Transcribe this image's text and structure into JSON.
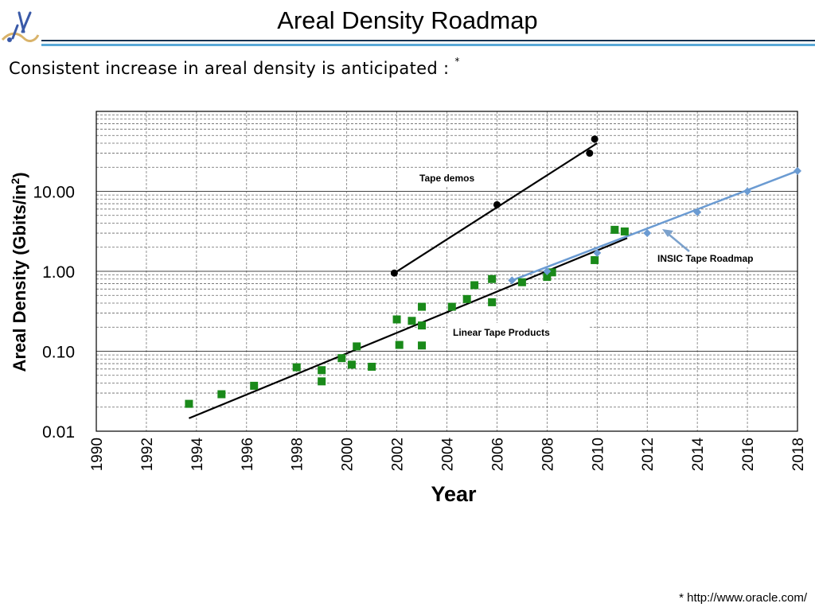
{
  "slide": {
    "title": "Areal Density Roadmap",
    "subtitle": "Consistent increase in areal density is anticipated :",
    "subtitle_marker": "*",
    "footnote": "* http://www.oracle.com/",
    "colors": {
      "header_rule_dark": "#17324f",
      "header_rule_light": "#5aa9d8",
      "logo": "#3a5aa8"
    }
  },
  "chart_data": {
    "type": "scatter",
    "xlabel": "Year",
    "ylabel": "Areal Density (Gbits/in²)",
    "ylabel_base": "Areal Density (Gbits/in",
    "ylabel_sup": "2",
    "ylabel_end": ")",
    "xlim": [
      1990,
      2018
    ],
    "ylim": [
      0.01,
      100
    ],
    "yscale": "log",
    "grid": true,
    "x_ticks": [
      "1990",
      "1992",
      "1994",
      "1996",
      "1998",
      "2000",
      "2002",
      "2004",
      "2006",
      "2008",
      "2010",
      "2012",
      "2014",
      "2016",
      "2018"
    ],
    "y_ticks": [
      {
        "value": 0.01,
        "label": "0.01"
      },
      {
        "value": 0.1,
        "label": "0.10"
      },
      {
        "value": 1,
        "label": "1.00"
      },
      {
        "value": 10,
        "label": "10.00"
      }
    ],
    "series": [
      {
        "key": "tape_demos",
        "color": "#000000",
        "marker": "circle",
        "points": [
          [
            2001.9,
            0.95
          ],
          [
            2006,
            6.8
          ],
          [
            2009.7,
            30
          ],
          [
            2009.9,
            45
          ]
        ],
        "trend": [
          [
            2001.9,
            0.95
          ],
          [
            2010,
            40
          ]
        ]
      },
      {
        "key": "linear_tape_products",
        "color": "#1a8a1a",
        "marker": "square",
        "points": [
          [
            1993.7,
            0.022
          ],
          [
            1995,
            0.029
          ],
          [
            1996.3,
            0.037
          ],
          [
            1998,
            0.063
          ],
          [
            1999,
            0.058
          ],
          [
            1999,
            0.042
          ],
          [
            1999.8,
            0.082
          ],
          [
            2000.2,
            0.068
          ],
          [
            2000.4,
            0.115
          ],
          [
            2001,
            0.064
          ],
          [
            2002,
            0.25
          ],
          [
            2002.1,
            0.12
          ],
          [
            2002.6,
            0.24
          ],
          [
            2003,
            0.36
          ],
          [
            2003,
            0.21
          ],
          [
            2003,
            0.118
          ],
          [
            2004.2,
            0.36
          ],
          [
            2004.8,
            0.45
          ],
          [
            2005.1,
            0.67
          ],
          [
            2005.8,
            0.8
          ],
          [
            2005.8,
            0.41
          ],
          [
            2007,
            0.73
          ],
          [
            2008,
            0.85
          ],
          [
            2008.2,
            0.97
          ],
          [
            2009.9,
            1.38
          ],
          [
            2010.7,
            3.3
          ],
          [
            2011.1,
            3.15
          ]
        ],
        "trend": [
          [
            1993.7,
            0.0145
          ],
          [
            2011.2,
            2.6
          ]
        ]
      },
      {
        "key": "insic_tape_roadmap",
        "color": "#6b9bd2",
        "marker": "diamond",
        "points": [
          [
            2006.6,
            0.77
          ],
          [
            2008,
            1.0
          ],
          [
            2010,
            1.7
          ],
          [
            2012,
            3.0
          ],
          [
            2014,
            5.5
          ],
          [
            2016,
            10
          ],
          [
            2018,
            18
          ]
        ],
        "trend": [
          [
            2006.6,
            0.77
          ],
          [
            2018,
            18
          ]
        ]
      }
    ],
    "annotations": [
      {
        "key": "tape_demos",
        "text": "Tape demos"
      },
      {
        "key": "insic_tape_roadmap",
        "text": "INSIC Tape Roadmap"
      },
      {
        "key": "linear_tape_products",
        "text": "Linear Tape Products"
      }
    ]
  }
}
